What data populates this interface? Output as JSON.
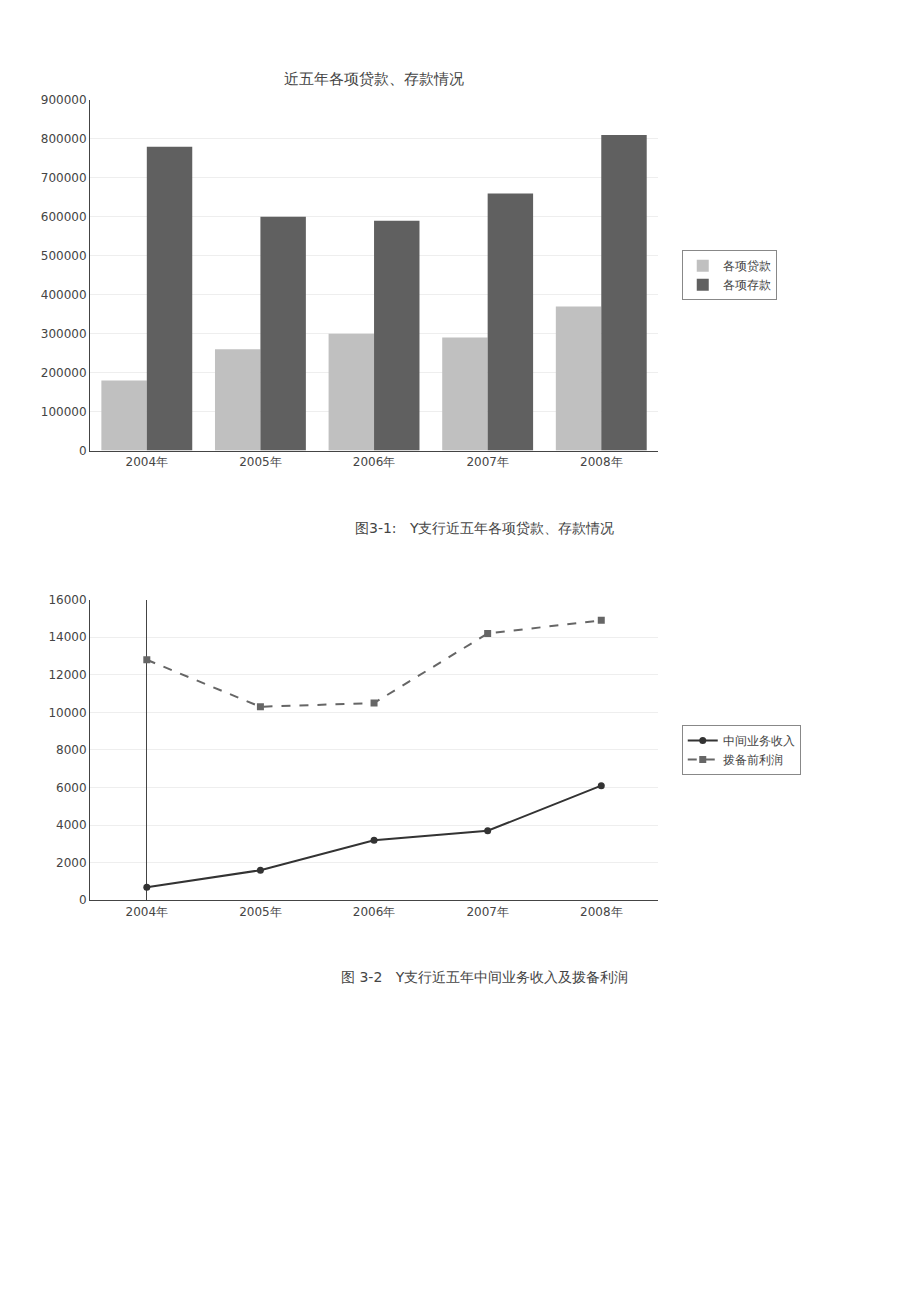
{
  "chart_data": [
    {
      "type": "bar",
      "title": "近五年各项贷款、存款情况",
      "categories": [
        "2004年",
        "2005年",
        "2006年",
        "2007年",
        "2008年"
      ],
      "series": [
        {
          "name": "各项贷款",
          "color": "#c0c0c0",
          "values": [
            180000,
            260000,
            300000,
            290000,
            370000
          ]
        },
        {
          "name": "各项存款",
          "color": "#606060",
          "values": [
            780000,
            600000,
            590000,
            660000,
            810000
          ]
        }
      ],
      "ylim": [
        0,
        900000
      ],
      "yticks": [
        0,
        100000,
        200000,
        300000,
        400000,
        500000,
        600000,
        700000,
        800000,
        900000
      ],
      "grid": true,
      "legend": "right",
      "annotations": [
        "图3-1:   Y支行近五年各项贷款、存款情况"
      ]
    },
    {
      "type": "line",
      "categories": [
        "2004年",
        "2005年",
        "2006年",
        "2007年",
        "2008年"
      ],
      "series": [
        {
          "name": "中间业务收入",
          "color": "#333333",
          "marker": "circle",
          "line_style": "solid",
          "values": [
            700,
            1600,
            3200,
            3700,
            6100
          ]
        },
        {
          "name": "拨备前利润",
          "color": "#666666",
          "marker": "square",
          "line_style": "dashed",
          "values": [
            12800,
            10300,
            10500,
            14200,
            14900
          ]
        }
      ],
      "ylim": [
        0,
        16000
      ],
      "yticks": [
        0,
        2000,
        4000,
        6000,
        8000,
        10000,
        12000,
        14000,
        16000
      ],
      "grid": true,
      "legend": "right",
      "annotations": [
        "图 3-2   Y支行近五年中间业务收入及拨备利润"
      ]
    }
  ]
}
